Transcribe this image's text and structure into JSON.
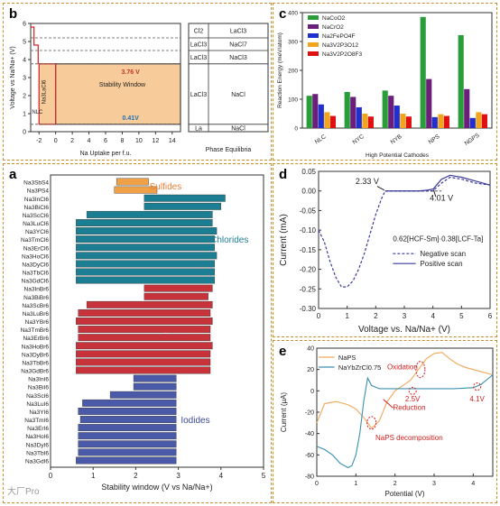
{
  "chart_data": [
    {
      "panel": "b",
      "type": "area",
      "ylabel": "Voltage vs Na/Na+ (V)",
      "xlabel": "Na Uptake per f.u.",
      "xlim": [
        -3,
        15
      ],
      "ylim": [
        0,
        6
      ],
      "xticks": [
        "-2",
        "0",
        "2",
        "4",
        "6",
        "8",
        "10",
        "12",
        "14"
      ],
      "yticks": [
        "0",
        "1",
        "2",
        "3",
        "4",
        "5",
        "6"
      ],
      "window_label": "Stability Window",
      "upper_voltage": "3.76 V",
      "lower_voltage": "0.41V",
      "compound_label": "Na3LaCl6",
      "nlc_label": "NLC",
      "window": [
        0.41,
        3.76
      ],
      "phase_title": "Phase Equilibria",
      "phases": [
        {
          "left": "Cl2",
          "right": "LaCl3",
          "from": 5.2,
          "to": 6.0
        },
        {
          "left": "LaCl3",
          "right": "NaCl7",
          "from": 4.5,
          "to": 5.2
        },
        {
          "left": "LaCl3",
          "right": "NaCl3",
          "from": 3.76,
          "to": 4.5
        },
        {
          "left": "LaCl3",
          "right": "NaCl",
          "from": 0.41,
          "to": 3.76
        },
        {
          "left": "La",
          "right": "NaCl",
          "from": 0.0,
          "to": 0.41
        }
      ]
    },
    {
      "panel": "c",
      "type": "bar",
      "ylabel": "Reaction Energy (meV/atom)",
      "xlabel": "High Potential Cathodes",
      "ylim": [
        0,
        400
      ],
      "yticks": [
        "0",
        "100",
        "200",
        "300",
        "400"
      ],
      "categories": [
        "NLC",
        "NYC",
        "NYB",
        "NPS",
        "NGPS"
      ],
      "series": [
        {
          "name": "NaCoO2",
          "color": "#2a9d3a",
          "values": [
            112,
            125,
            130,
            385,
            322
          ]
        },
        {
          "name": "NaCrO2",
          "color": "#6a1f7a",
          "values": [
            118,
            108,
            112,
            170,
            135
          ]
        },
        {
          "name": "Na2FePO4F",
          "color": "#1f2fd0",
          "values": [
            82,
            72,
            78,
            38,
            35
          ]
        },
        {
          "name": "Na3V2P3O12",
          "color": "#f2a51a",
          "values": [
            55,
            50,
            50,
            48,
            55
          ]
        },
        {
          "name": "Na3V2P2O8F3",
          "color": "#e01010",
          "values": [
            42,
            40,
            40,
            42,
            48
          ]
        }
      ]
    },
    {
      "panel": "a",
      "type": "bar",
      "orientation": "horizontal",
      "xlabel": "Stability window (V vs Na/Na+)",
      "xlim": [
        0,
        5
      ],
      "xticks": [
        "0",
        "1",
        "2",
        "3",
        "4",
        "5"
      ],
      "groups": [
        {
          "name": "Sulfides",
          "color": "#f0a046",
          "text_color": "#e8803a",
          "items": [
            [
              "Na3SbS4",
              1.55,
              2.3
            ],
            [
              "Na3PS4",
              1.5,
              2.5
            ]
          ]
        },
        {
          "name": "Chlorides",
          "color": "#1c7e92",
          "text_color": "#1f7f93",
          "items": [
            [
              "Na3InCl6",
              2.2,
              4.1
            ],
            [
              "Na3BiCl6",
              2.2,
              4.0
            ],
            [
              "Na3ScCl6",
              0.85,
              3.8
            ],
            [
              "Na3LuCl6",
              0.6,
              3.8
            ],
            [
              "Na3YCl6",
              0.6,
              3.9
            ],
            [
              "Na3TmCl6",
              0.6,
              3.85
            ],
            [
              "Na3ErCl6",
              0.6,
              3.85
            ],
            [
              "Na3HoCl6",
              0.6,
              3.9
            ],
            [
              "Na3DyCl6",
              0.6,
              3.85
            ],
            [
              "Na3TbCl6",
              0.6,
              3.85
            ],
            [
              "Na3GdCl6",
              0.6,
              3.85
            ]
          ]
        },
        {
          "name": "Bromides",
          "color": "#c8323a",
          "text_color": "#c8323a",
          "items": [
            [
              "Na3InBr6",
              2.2,
              3.8
            ],
            [
              "Na3BiBr6",
              2.2,
              3.7
            ],
            [
              "Na3ScBr6",
              0.85,
              3.8
            ],
            [
              "Na3LuBr6",
              0.65,
              3.75
            ],
            [
              "Na3YBr6",
              0.6,
              3.8
            ],
            [
              "Na3TmBr6",
              0.65,
              3.75
            ],
            [
              "Na3ErBr6",
              0.65,
              3.75
            ],
            [
              "Na3HoBr6",
              0.6,
              3.8
            ],
            [
              "Na3DyBr6",
              0.6,
              3.75
            ],
            [
              "Na3TbBr6",
              0.6,
              3.75
            ],
            [
              "Na3GdBr6",
              0.6,
              3.75
            ]
          ]
        },
        {
          "name": "Iodides",
          "color": "#4a5aa8",
          "text_color": "#3c4a9a",
          "items": [
            [
              "Na3InI6",
              1.95,
              2.95
            ],
            [
              "Na3BiI6",
              1.95,
              2.95
            ],
            [
              "Na3ScI6",
              1.4,
              2.95
            ],
            [
              "Na3LuI6",
              0.75,
              2.95
            ],
            [
              "Na3YI6",
              0.65,
              2.95
            ],
            [
              "Na3TmI6",
              0.7,
              2.95
            ],
            [
              "Na3ErI6",
              0.65,
              2.95
            ],
            [
              "Na3HoI6",
              0.65,
              2.95
            ],
            [
              "Na3DyI6",
              0.65,
              2.95
            ],
            [
              "Na3TbI6",
              0.65,
              2.95
            ],
            [
              "Na3GdI6",
              0.6,
              2.95
            ]
          ]
        }
      ]
    },
    {
      "panel": "d",
      "type": "line",
      "xlabel": "Voltage vs. Na/Na+ (V)",
      "ylabel": "Current (mA)",
      "xlim": [
        0,
        6
      ],
      "ylim": [
        -0.3,
        0.05
      ],
      "xticks": [
        "0",
        "1",
        "2",
        "3",
        "4",
        "5",
        "6"
      ],
      "yticks": [
        "0.05",
        "0.00",
        "-0.05",
        "-0.10",
        "-0.15",
        "-0.20",
        "-0.25",
        "-0.30"
      ],
      "annotation_low": "2.33 V",
      "annotation_high": "4.01 V",
      "sample_label": "0.62[HCF-Sm]·0.38[LCF-Ta]",
      "series": [
        {
          "name": "Negative scan",
          "color": "#3a3a9a",
          "dashed": true,
          "x": [
            0,
            0.2,
            0.4,
            0.6,
            0.8,
            1.0,
            1.2,
            1.4,
            1.6,
            1.8,
            2.0,
            2.2,
            2.33,
            2.5,
            3.0,
            3.5,
            4.0,
            4.3,
            4.6,
            5.0,
            5.5,
            6.0
          ],
          "y": [
            -0.1,
            -0.13,
            -0.18,
            -0.22,
            -0.245,
            -0.245,
            -0.23,
            -0.2,
            -0.16,
            -0.11,
            -0.06,
            -0.02,
            0.0,
            0.0,
            0.0,
            0.0,
            0.0,
            0.02,
            0.035,
            0.03,
            0.02,
            0.015
          ]
        },
        {
          "name": "Positive scan",
          "color": "#3a3a9a",
          "dashed": false,
          "x": [
            2.33,
            2.6,
            3.0,
            3.5,
            3.8,
            4.01,
            4.3,
            4.6,
            5.0,
            5.5,
            6.0
          ],
          "y": [
            0.0,
            0.0,
            0.0,
            0.0,
            0.002,
            0.005,
            0.03,
            0.04,
            0.035,
            0.025,
            0.015
          ]
        }
      ]
    },
    {
      "panel": "e",
      "type": "line",
      "xlabel": "Potential (V)",
      "ylabel": "Current (μA)",
      "xlim": [
        0,
        4.5
      ],
      "ylim": [
        -80,
        40
      ],
      "xticks": [
        "0",
        "1",
        "2",
        "3",
        "4"
      ],
      "yticks": [
        "40",
        "20",
        "0",
        "-20",
        "-40",
        "-60",
        "-80"
      ],
      "oxidation_label": "Oxidation",
      "reduction_label": "Reduction",
      "decomposition_label": "NaPS  decomposition",
      "mark_25": "2.5V",
      "mark_41": "4.1V",
      "series": [
        {
          "name": "NaPS",
          "color": "#f0a85a",
          "x": [
            0,
            0.2,
            0.5,
            0.8,
            1.0,
            1.2,
            1.4,
            1.6,
            1.8,
            2.0,
            2.2,
            2.4,
            2.6,
            2.8,
            3.0,
            3.2,
            3.4,
            3.6,
            3.8,
            4.0,
            4.2,
            4.4,
            4.5
          ],
          "y": [
            -30,
            -12,
            -10,
            -13,
            -17,
            -25,
            -35,
            -28,
            -10,
            0,
            5,
            10,
            20,
            30,
            35,
            36,
            30,
            25,
            22,
            20,
            18,
            16,
            15
          ]
        },
        {
          "name": "NaYbZrCl0.75",
          "color": "#3a8fb0",
          "x": [
            0,
            0.2,
            0.4,
            0.6,
            0.8,
            0.9,
            1.0,
            1.1,
            1.2,
            1.3,
            1.4,
            1.6,
            2.0,
            2.5,
            3.0,
            3.5,
            4.0,
            4.2,
            4.4,
            4.5
          ],
          "y": [
            -52,
            -55,
            -60,
            -68,
            -72,
            -70,
            -60,
            -40,
            -10,
            12,
            5,
            2,
            2,
            2,
            2,
            2,
            3,
            6,
            12,
            15
          ]
        }
      ]
    }
  ],
  "watermark": "大厂Pro"
}
